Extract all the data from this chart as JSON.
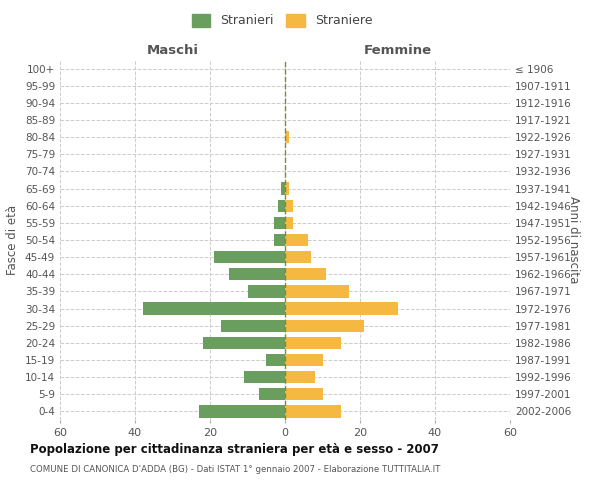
{
  "age_groups": [
    "0-4",
    "5-9",
    "10-14",
    "15-19",
    "20-24",
    "25-29",
    "30-34",
    "35-39",
    "40-44",
    "45-49",
    "50-54",
    "55-59",
    "60-64",
    "65-69",
    "70-74",
    "75-79",
    "80-84",
    "85-89",
    "90-94",
    "95-99",
    "100+"
  ],
  "birth_years": [
    "2002-2006",
    "1997-2001",
    "1992-1996",
    "1987-1991",
    "1982-1986",
    "1977-1981",
    "1972-1976",
    "1967-1971",
    "1962-1966",
    "1957-1961",
    "1952-1956",
    "1947-1951",
    "1942-1946",
    "1937-1941",
    "1932-1936",
    "1927-1931",
    "1922-1926",
    "1917-1921",
    "1912-1916",
    "1907-1911",
    "≤ 1906"
  ],
  "males": [
    23,
    7,
    11,
    5,
    22,
    17,
    38,
    10,
    15,
    19,
    3,
    3,
    2,
    1,
    0,
    0,
    0,
    0,
    0,
    0,
    0
  ],
  "females": [
    15,
    10,
    8,
    10,
    15,
    21,
    30,
    17,
    11,
    7,
    6,
    2,
    2,
    1,
    0,
    0,
    1,
    0,
    0,
    0,
    0
  ],
  "male_color": "#6a9e5e",
  "female_color": "#f5b942",
  "grid_color": "#cccccc",
  "xlim": 60,
  "title": "Popolazione per cittadinanza straniera per età e sesso - 2007",
  "subtitle": "COMUNE DI CANONICA D'ADDA (BG) - Dati ISTAT 1° gennaio 2007 - Elaborazione TUTTITALIA.IT",
  "ylabel_left": "Fasce di età",
  "ylabel_right": "Anni di nascita",
  "xlabel_left": "Maschi",
  "xlabel_right": "Femmine",
  "legend_male": "Stranieri",
  "legend_female": "Straniere",
  "background_color": "#ffffff",
  "bar_height": 0.72
}
